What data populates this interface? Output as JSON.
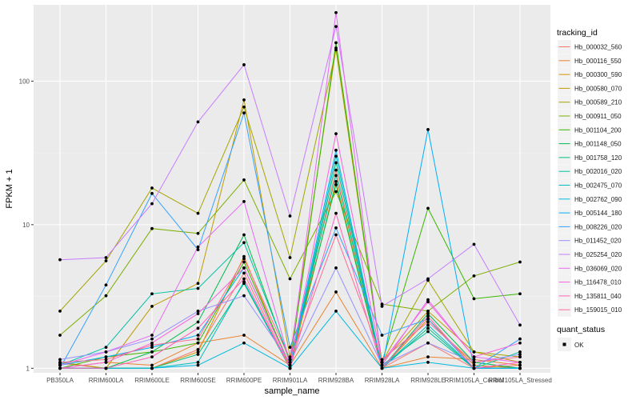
{
  "chart_data": {
    "type": "line",
    "title": "",
    "xlabel": "sample_name",
    "ylabel": "FPKM + 1",
    "y_scale": "log10",
    "ylim": [
      0.93,
      340
    ],
    "yticks": [
      1,
      10,
      100
    ],
    "ytick_labels": [
      "1",
      "10",
      "100"
    ],
    "grid": true,
    "panel_background": "#ebebeb",
    "categories": [
      "PB350LA",
      "RRIM600LA",
      "RRIM600LE",
      "RRIM600SE",
      "RRIM600PE",
      "RRIM901LA",
      "RRIM928BA",
      "RRIM928LA",
      "RRIM928LE",
      "RRIM105LA_Control",
      "RRIM105LA_Stressed"
    ],
    "category_labels": [
      "PB350LA",
      "RRIM600LA",
      "RRIM600LE",
      "RRIM600SE",
      "RRIM600PE",
      "RRIM901LA",
      "RRIM928BA",
      "RRIM928LA",
      "RRIM928LE",
      "RRIM105LA_Control",
      "RRIM105LA_Stressed"
    ],
    "legend": {
      "position": "right",
      "title": "tracking_id",
      "shape_title": "quant_status",
      "shape_label": "OK"
    },
    "series": [
      {
        "name": "Hb_000032_560",
        "color": "#F8766D",
        "values": [
          1.08,
          1.0,
          1.0,
          1.35,
          4.6,
          1.0,
          24,
          1.0,
          1.5,
          1.0,
          1.05
        ]
      },
      {
        "name": "Hb_000116_550",
        "color": "#EA8331",
        "values": [
          1.0,
          1.1,
          1.05,
          1.5,
          1.7,
          1.05,
          3.4,
          1.0,
          1.2,
          1.15,
          1.05
        ]
      },
      {
        "name": "Hb_000300_590",
        "color": "#D89000",
        "values": [
          1.0,
          1.0,
          1.0,
          1.3,
          6.0,
          1.0,
          20,
          1.0,
          2.2,
          1.05,
          1.0
        ]
      },
      {
        "name": "Hb_000580_070",
        "color": "#C09B00",
        "values": [
          1.1,
          1.0,
          2.7,
          3.9,
          74,
          1.2,
          170,
          1.1,
          2.5,
          1.3,
          1.1
        ]
      },
      {
        "name": "Hb_000589_210",
        "color": "#A3A500",
        "values": [
          2.5,
          5.6,
          18,
          12,
          66,
          5.9,
          165,
          1.1,
          4.1,
          1.3,
          1.2
        ]
      },
      {
        "name": "Hb_000911_050",
        "color": "#7CAE00",
        "values": [
          1.7,
          3.2,
          9.4,
          8.7,
          20.5,
          4.2,
          17,
          2.8,
          2.5,
          4.4,
          5.5
        ]
      },
      {
        "name": "Hb_001104_200",
        "color": "#39B600",
        "values": [
          1.0,
          1.2,
          1.3,
          1.5,
          5.5,
          1.05,
          185,
          1.1,
          13,
          3.05,
          3.3
        ]
      },
      {
        "name": "Hb_001148_050",
        "color": "#00BB4E",
        "values": [
          1.0,
          1.0,
          1.3,
          2.1,
          8.5,
          1.1,
          19,
          1.0,
          2.4,
          1.1,
          1.0
        ]
      },
      {
        "name": "Hb_001758_120",
        "color": "#00BF7D",
        "values": [
          1.0,
          1.0,
          1.0,
          1.25,
          3.9,
          1.0,
          27,
          1.0,
          1.9,
          1.0,
          1.0
        ]
      },
      {
        "name": "Hb_002016_020",
        "color": "#00C1A3",
        "values": [
          1.05,
          1.4,
          3.3,
          3.6,
          7.5,
          1.15,
          22,
          1.05,
          1.8,
          1.0,
          1.3
        ]
      },
      {
        "name": "Hb_002475_070",
        "color": "#00BFC4",
        "values": [
          1.0,
          1.0,
          1.0,
          1.1,
          4.0,
          1.0,
          30,
          1.0,
          2.0,
          1.0,
          1.0
        ]
      },
      {
        "name": "Hb_002762_090",
        "color": "#00BAE0",
        "values": [
          1.0,
          1.0,
          1.0,
          1.05,
          1.5,
          1.0,
          2.5,
          1.0,
          1.1,
          1.0,
          1.0
        ]
      },
      {
        "name": "Hb_005144_180",
        "color": "#00B0F6",
        "values": [
          1.05,
          1.2,
          1.4,
          1.7,
          5.0,
          1.05,
          33,
          1.0,
          46,
          1.0,
          1.0
        ]
      },
      {
        "name": "Hb_008226_020",
        "color": "#35A2FF",
        "values": [
          1.0,
          3.8,
          16.5,
          6.7,
          60,
          1.4,
          9.5,
          1.7,
          2.2,
          1.0,
          1.6
        ]
      },
      {
        "name": "Hb_011452_020",
        "color": "#9590FF",
        "values": [
          1.15,
          1.3,
          1.6,
          2.5,
          3.2,
          1.1,
          5.0,
          1.05,
          1.5,
          1.1,
          1.25
        ]
      },
      {
        "name": "Hb_025254_020",
        "color": "#C77CFF",
        "values": [
          5.7,
          5.9,
          14,
          52,
          130,
          11.5,
          240,
          2.7,
          4.2,
          7.3,
          2.0
        ]
      },
      {
        "name": "Hb_036069_020",
        "color": "#E76BF3",
        "values": [
          1.05,
          1.3,
          1.7,
          7.0,
          14.5,
          1.1,
          300,
          1.05,
          3.0,
          1.2,
          1.1
        ]
      },
      {
        "name": "Hb_116478_010",
        "color": "#FA62DB",
        "values": [
          1.0,
          1.1,
          1.5,
          2.4,
          5.0,
          1.05,
          43,
          1.1,
          2.9,
          1.2,
          1.5
        ]
      },
      {
        "name": "Hb_135811_040",
        "color": "#FF62BC",
        "values": [
          1.0,
          1.0,
          1.2,
          1.9,
          4.2,
          1.0,
          12,
          1.0,
          2.3,
          1.0,
          1.1
        ]
      },
      {
        "name": "Hb_159015_010",
        "color": "#FF6C91",
        "values": [
          1.1,
          1.15,
          1.45,
          1.6,
          5.8,
          1.15,
          8.5,
          1.15,
          2.1,
          1.1,
          1.2
        ]
      }
    ]
  }
}
